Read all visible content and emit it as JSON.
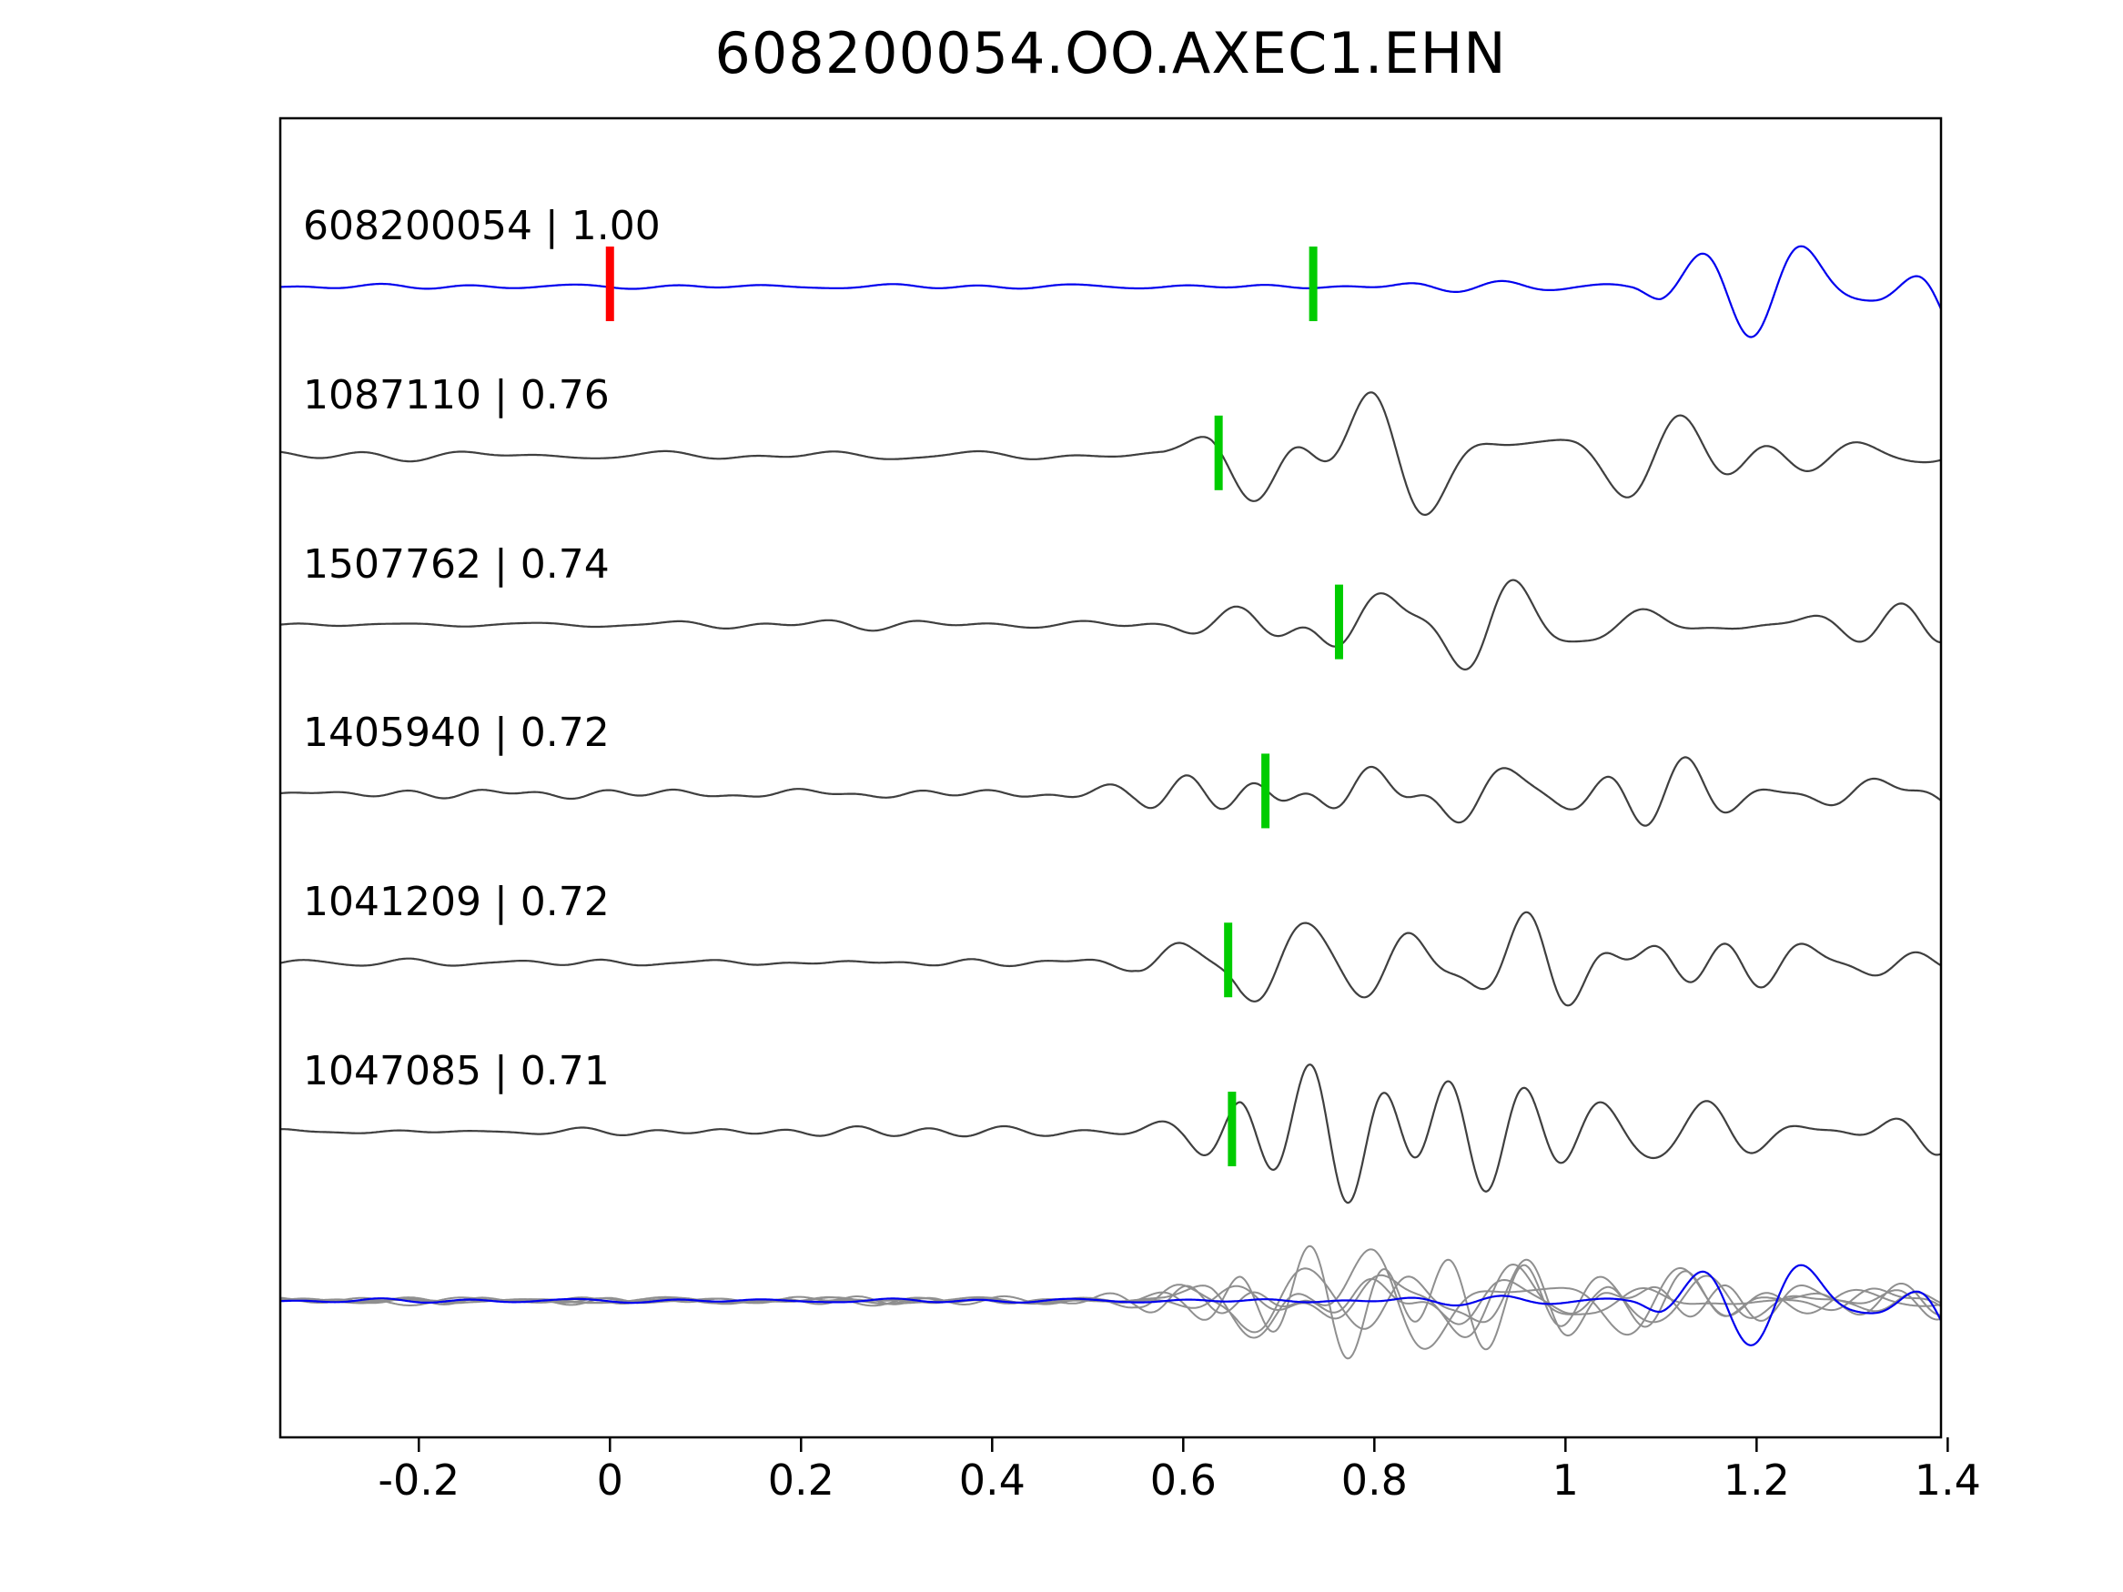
{
  "title": "608200054.OO.AXEC1.EHN",
  "chart_data": {
    "type": "line",
    "title": "608200054.OO.AXEC1.EHN",
    "xlabel": "",
    "ylabel": "",
    "grid": false,
    "legend": "none",
    "xlim": [
      -0.345,
      1.393
    ],
    "x_ticks": [
      {
        "value": -0.2,
        "label": "-0.2"
      },
      {
        "value": 0,
        "label": "0"
      },
      {
        "value": 0.2,
        "label": "0.2"
      },
      {
        "value": 0.4,
        "label": "0.4"
      },
      {
        "value": 0.6,
        "label": "0.6"
      },
      {
        "value": 0.8,
        "label": "0.8"
      },
      {
        "value": 1,
        "label": "1"
      },
      {
        "value": 1.2,
        "label": "1.2"
      },
      {
        "value": 1.4,
        "label": "1.4"
      }
    ],
    "series": [
      {
        "label": "608200054 | 1.00",
        "id": "608200054",
        "correlation": "1.00",
        "role": "reference",
        "color": "#0000ee",
        "pick_red": 0.0,
        "pick_green": 0.736,
        "seed": 11,
        "amp": 34,
        "envelope": [
          [
            -0.345,
            0.04
          ],
          [
            0.3,
            0.04
          ],
          [
            0.55,
            0.045
          ],
          [
            0.65,
            0.055
          ],
          [
            0.75,
            0.06
          ],
          [
            0.85,
            0.1
          ],
          [
            0.95,
            0.11
          ],
          [
            1.02,
            0.08
          ],
          [
            1.07,
            0.1
          ],
          [
            1.1,
            0.35
          ],
          [
            1.16,
            0.5
          ],
          [
            1.22,
            0.62
          ],
          [
            1.28,
            0.72
          ],
          [
            1.33,
            0.95
          ],
          [
            1.393,
            1.0
          ]
        ]
      },
      {
        "label": "1087110 | 0.76",
        "id": "1087110",
        "correlation": "0.76",
        "role": "match",
        "color": "#3f3f3f",
        "pick_green": 0.637,
        "seed": 23,
        "amp": 32,
        "envelope": [
          [
            -0.345,
            0.07
          ],
          [
            0.4,
            0.08
          ],
          [
            0.52,
            0.1
          ],
          [
            0.58,
            0.25
          ],
          [
            0.63,
            0.8
          ],
          [
            0.7,
            1.0
          ],
          [
            0.8,
            0.95
          ],
          [
            0.9,
            0.75
          ],
          [
            1.0,
            0.6
          ],
          [
            1.12,
            0.55
          ],
          [
            1.25,
            0.5
          ],
          [
            1.393,
            0.45
          ]
        ]
      },
      {
        "label": "1507762 | 0.74",
        "id": "1507762",
        "correlation": "0.74",
        "role": "match",
        "color": "#3f3f3f",
        "pick_green": 0.763,
        "seed": 37,
        "amp": 32,
        "envelope": [
          [
            -0.345,
            0.06
          ],
          [
            0.45,
            0.08
          ],
          [
            0.58,
            0.12
          ],
          [
            0.66,
            0.35
          ],
          [
            0.74,
            0.75
          ],
          [
            0.82,
            1.0
          ],
          [
            0.92,
            0.9
          ],
          [
            1.02,
            0.7
          ],
          [
            1.15,
            0.55
          ],
          [
            1.28,
            0.5
          ],
          [
            1.393,
            0.55
          ]
        ]
      },
      {
        "label": "1405940 | 0.72",
        "id": "1405940",
        "correlation": "0.72",
        "role": "match",
        "color": "#3f3f3f",
        "pick_green": 0.686,
        "seed": 51,
        "amp": 32,
        "envelope": [
          [
            -0.345,
            0.07
          ],
          [
            0.4,
            0.09
          ],
          [
            0.55,
            0.15
          ],
          [
            0.62,
            0.4
          ],
          [
            0.7,
            0.85
          ],
          [
            0.78,
            1.0
          ],
          [
            0.88,
            0.85
          ],
          [
            1.0,
            0.65
          ],
          [
            1.12,
            0.55
          ],
          [
            1.25,
            0.5
          ],
          [
            1.393,
            0.45
          ]
        ]
      },
      {
        "label": "1041209 | 0.72",
        "id": "1041209",
        "correlation": "0.72",
        "role": "match",
        "color": "#3f3f3f",
        "pick_green": 0.647,
        "seed": 67,
        "amp": 32,
        "envelope": [
          [
            -0.345,
            0.06
          ],
          [
            0.42,
            0.08
          ],
          [
            0.55,
            0.12
          ],
          [
            0.61,
            0.4
          ],
          [
            0.66,
            0.85
          ],
          [
            0.74,
            1.0
          ],
          [
            0.85,
            0.9
          ],
          [
            0.95,
            0.7
          ],
          [
            1.08,
            0.55
          ],
          [
            1.2,
            0.5
          ],
          [
            1.393,
            0.45
          ]
        ]
      },
      {
        "label": "1047085 | 0.71",
        "id": "1047085",
        "correlation": "0.71",
        "role": "match",
        "color": "#3f3f3f",
        "pick_green": 0.651,
        "seed": 83,
        "amp": 32,
        "envelope": [
          [
            -0.345,
            0.07
          ],
          [
            0.4,
            0.08
          ],
          [
            0.52,
            0.12
          ],
          [
            0.6,
            0.35
          ],
          [
            0.66,
            0.85
          ],
          [
            0.75,
            1.0
          ],
          [
            0.85,
            0.9
          ],
          [
            0.97,
            0.7
          ],
          [
            1.1,
            0.55
          ],
          [
            1.22,
            0.45
          ],
          [
            1.393,
            0.42
          ]
        ]
      }
    ],
    "overlay_row": {
      "description": "all matched traces overlaid in gray with reference trace in blue",
      "gray_members": [
        1,
        2,
        3,
        4,
        5
      ],
      "blue_member": 0,
      "gray_color": "#8f8f8f",
      "gray_amp": 26,
      "blue_amp": 30
    }
  },
  "markers": {
    "red_pick_color": "#ff0000",
    "green_pick_color": "#00cc00"
  },
  "axis_color": "#000000",
  "background_color": "#ffffff"
}
